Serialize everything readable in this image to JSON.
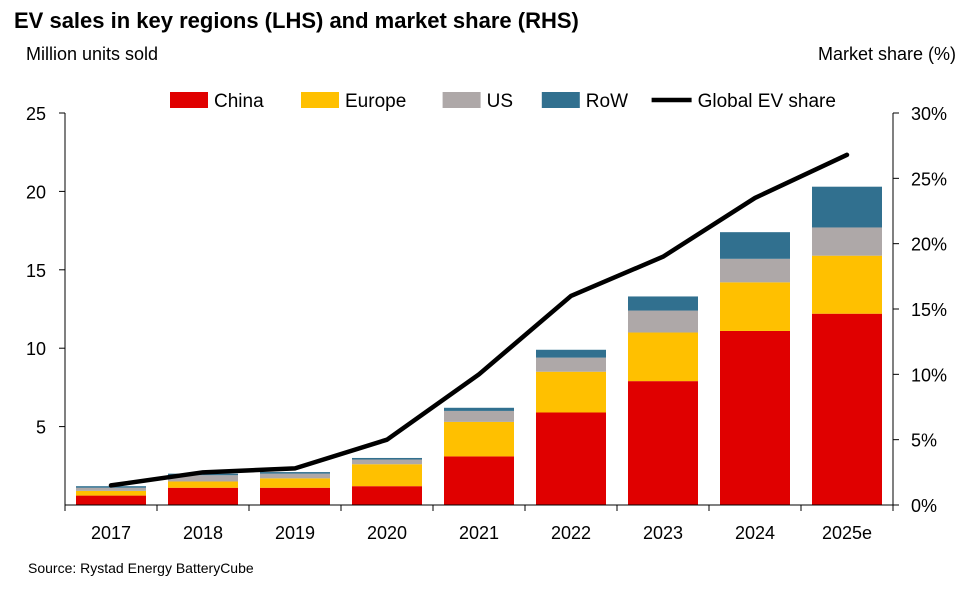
{
  "chart_data": {
    "type": "bar",
    "title": "EV sales in key regions (LHS) and market share (RHS)",
    "ylabel": "Million units sold",
    "y2label": "Market share (%)",
    "source": "Source: Rystad Energy BatteryCube",
    "categories": [
      "2017",
      "2018",
      "2019",
      "2020",
      "2021",
      "2022",
      "2023",
      "2024",
      "2025e"
    ],
    "ylim": [
      0,
      25
    ],
    "yticks": [
      "25",
      "20",
      "15",
      "10",
      "5"
    ],
    "y2lim": [
      0,
      30
    ],
    "y2ticks": [
      "30%",
      "25%",
      "20%",
      "15%",
      "10%",
      "5%",
      "0%"
    ],
    "stacked": true,
    "legend_position": "top",
    "series": [
      {
        "name": "China",
        "color": "#E00000",
        "values": [
          0.6,
          1.1,
          1.1,
          1.2,
          3.1,
          5.9,
          7.9,
          11.1,
          12.2
        ]
      },
      {
        "name": "Europe",
        "color": "#FFC000",
        "values": [
          0.3,
          0.4,
          0.6,
          1.4,
          2.2,
          2.6,
          3.1,
          3.1,
          3.7
        ]
      },
      {
        "name": "US",
        "color": "#AEA8A8",
        "values": [
          0.2,
          0.4,
          0.3,
          0.3,
          0.7,
          0.9,
          1.4,
          1.5,
          1.8
        ]
      },
      {
        "name": "RoW",
        "color": "#31708F",
        "values": [
          0.1,
          0.1,
          0.1,
          0.1,
          0.2,
          0.5,
          0.9,
          1.7,
          2.6
        ]
      }
    ],
    "line_series": {
      "name": "Global EV share",
      "color": "#000000",
      "axis": "right",
      "values": [
        1.5,
        2.5,
        2.8,
        5.0,
        10.0,
        16.0,
        19.0,
        23.5,
        26.8
      ]
    }
  }
}
